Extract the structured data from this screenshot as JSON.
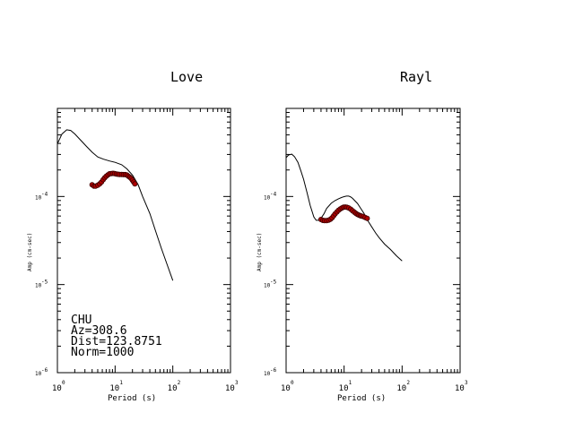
{
  "chart_data": [
    {
      "type": "line",
      "title": "Love",
      "xlabel": "Period (s)",
      "ylabel": "Amp (cm-sec)",
      "xscale": "log",
      "yscale": "log",
      "xlim": [
        1,
        1000
      ],
      "ylim": [
        1e-06,
        0.001
      ],
      "x_ticks": [
        {
          "base": "10",
          "exp": "0",
          "value": 1
        },
        {
          "base": "10",
          "exp": "1",
          "value": 10
        },
        {
          "base": "10",
          "exp": "2",
          "value": 100
        },
        {
          "base": "10",
          "exp": "3",
          "value": 1000
        }
      ],
      "y_ticks": [
        {
          "base": "10",
          "exp": "-6",
          "value": 1e-06
        },
        {
          "base": "10",
          "exp": "-5",
          "value": 1e-05
        },
        {
          "base": "10",
          "exp": "-4",
          "value": 0.0001
        }
      ],
      "series": [
        {
          "style": "line",
          "color": "#000000",
          "x": [
            1.0,
            1.2,
            1.45,
            1.7,
            2.0,
            2.5,
            3.2,
            4.0,
            5.0,
            6.3,
            8.0,
            10.0,
            13.0,
            16.0,
            20.0,
            25.0,
            30.0,
            40.0,
            50.0,
            63.0,
            80.0,
            100.0
          ],
          "y": [
            0.000396,
            0.000512,
            0.000571,
            0.000562,
            0.000513,
            0.00044,
            0.00037,
            0.000318,
            0.000281,
            0.000265,
            0.000253,
            0.000244,
            0.000229,
            0.000206,
            0.000175,
            0.000137,
            0.0001,
            6.4e-05,
            4.1e-05,
            2.6e-05,
            1.68e-05,
            1.11e-05
          ]
        },
        {
          "style": "markers",
          "color": "#b00000",
          "x": [
            4.0,
            4.3,
            4.6,
            5.0,
            5.4,
            5.8,
            6.2,
            6.6,
            7.0,
            7.5,
            8.0,
            8.6,
            9.2,
            9.8,
            10.5,
            11.2,
            12.0,
            13.0,
            14.0,
            15.0,
            16.0,
            17.0,
            18.0,
            19.0,
            20.0,
            21.0,
            22.0
          ],
          "y": [
            0.000136,
            0.000131,
            0.000131,
            0.000134,
            0.000139,
            0.000146,
            0.000155,
            0.000163,
            0.00017,
            0.000176,
            0.000181,
            0.000182,
            0.000183,
            0.000182,
            0.00018,
            0.000179,
            0.000178,
            0.000178,
            0.000177,
            0.000177,
            0.000175,
            0.00017,
            0.000165,
            0.00016,
            0.000153,
            0.000146,
            0.000139
          ]
        }
      ],
      "annotations": [
        "CHU",
        "Az=308.6",
        "Dist=123.8751",
        "Norm=1000"
      ]
    },
    {
      "type": "line",
      "title": "Rayl",
      "xlabel": "Period (s)",
      "ylabel": "Amp (cm-sec)",
      "xscale": "log",
      "yscale": "log",
      "xlim": [
        1,
        1000
      ],
      "ylim": [
        1e-06,
        0.001
      ],
      "x_ticks": [
        {
          "base": "10",
          "exp": "0",
          "value": 1
        },
        {
          "base": "10",
          "exp": "1",
          "value": 10
        },
        {
          "base": "10",
          "exp": "2",
          "value": 100
        },
        {
          "base": "10",
          "exp": "3",
          "value": 1000
        }
      ],
      "y_ticks": [
        {
          "base": "10",
          "exp": "-6",
          "value": 1e-06
        },
        {
          "base": "10",
          "exp": "-5",
          "value": 1e-05
        },
        {
          "base": "10",
          "exp": "-4",
          "value": 0.0001
        }
      ],
      "series": [
        {
          "style": "line",
          "color": "#000000",
          "x": [
            1.0,
            1.1,
            1.25,
            1.4,
            1.6,
            1.8,
            2.0,
            2.3,
            2.6,
            3.0,
            3.3,
            3.6,
            4.0,
            4.5,
            5.0,
            6.0,
            7.0,
            8.0,
            9.0,
            10.0,
            11.0,
            12.0,
            13.0,
            14.0,
            15.0,
            17.0,
            19.0,
            22.0,
            25.0,
            30.0,
            35.0,
            40.0,
            50.0,
            63.0,
            80.0,
            100.0
          ],
          "y": [
            0.000276,
            0.000296,
            0.000302,
            0.000283,
            0.000244,
            0.000195,
            0.000157,
            0.00011,
            7.95e-05,
            5.85e-05,
            5.37e-05,
            5.37e-05,
            5.65e-05,
            6.35e-05,
            7.31e-05,
            8.38e-05,
            8.99e-05,
            9.42e-05,
            9.74e-05,
            9.96e-05,
            0.000101,
            0.000101,
            9.9e-05,
            9.53e-05,
            9.08e-05,
            8.34e-05,
            7.45e-05,
            6.45e-05,
            5.45e-05,
            4.51e-05,
            3.86e-05,
            3.42e-05,
            2.87e-05,
            2.5e-05,
            2.12e-05,
            1.86e-05
          ]
        },
        {
          "style": "markers",
          "color": "#b00000",
          "x": [
            4.0,
            4.3,
            4.6,
            5.0,
            5.4,
            5.8,
            6.2,
            6.6,
            7.0,
            7.5,
            8.0,
            8.6,
            9.2,
            9.8,
            10.5,
            11.2,
            12.0,
            13.0,
            14.0,
            15.0,
            16.0,
            17.0,
            18.0,
            19.0,
            20.0,
            21.5,
            23.0,
            25.0
          ],
          "y": [
            5.48e-05,
            5.35e-05,
            5.32e-05,
            5.32e-05,
            5.39e-05,
            5.52e-05,
            5.73e-05,
            6.03e-05,
            6.36e-05,
            6.68e-05,
            6.97e-05,
            7.22e-05,
            7.42e-05,
            7.55e-05,
            7.59e-05,
            7.54e-05,
            7.41e-05,
            7.18e-05,
            6.89e-05,
            6.63e-05,
            6.41e-05,
            6.25e-05,
            6.15e-05,
            6.06e-05,
            5.99e-05,
            5.92e-05,
            5.79e-05,
            5.65e-05
          ]
        }
      ]
    }
  ]
}
